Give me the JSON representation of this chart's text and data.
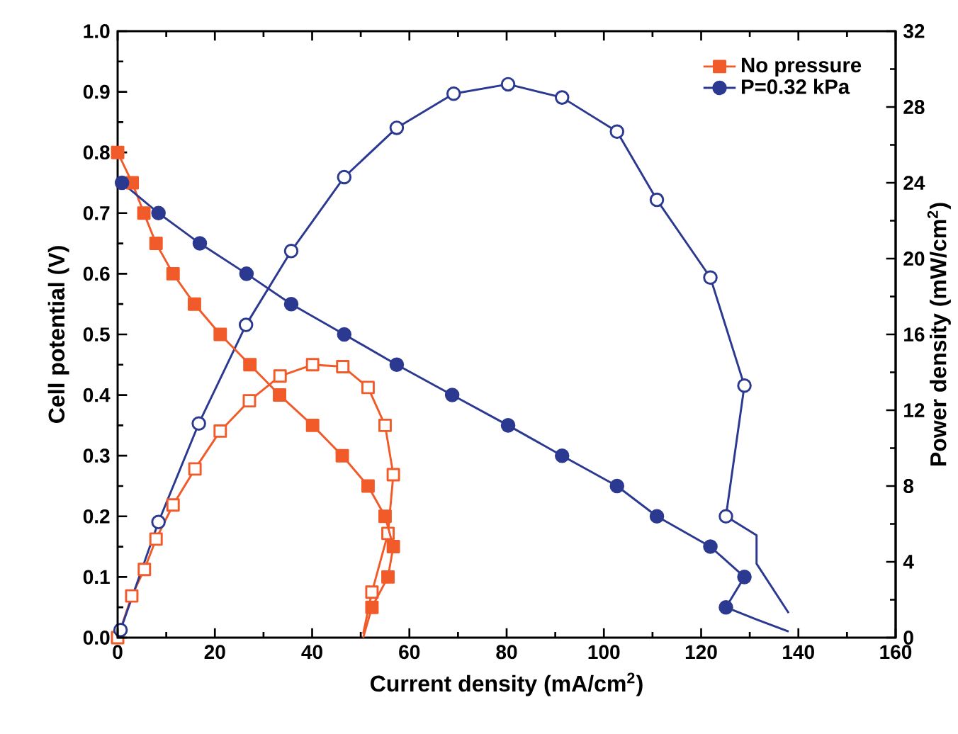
{
  "chart_data": {
    "type": "line",
    "xlabel": "Current density (mA/cm$^{2}$)",
    "ylabel": "Cell potential (V)",
    "y2label": "Power density (mW/cm$^{2}$)",
    "xlim": [
      0,
      160
    ],
    "xticks": [
      0,
      20,
      40,
      60,
      80,
      100,
      120,
      140,
      160
    ],
    "ylim": [
      0,
      1
    ],
    "yticks": [
      {
        "value": 0,
        "label": "0.0"
      },
      0.1,
      0.2,
      0.3,
      0.4,
      0.5,
      0.6,
      0.7,
      0.8,
      0.9,
      {
        "value": 1,
        "label": "1.0"
      }
    ],
    "y2lim": [
      0,
      32
    ],
    "y2ticks": [
      0,
      4,
      8,
      12,
      16,
      20,
      24,
      28,
      32
    ],
    "legend": "top right",
    "grid": false,
    "line_style": "solid",
    "series": [
      {
        "name": "No pressure",
        "color": "#f15a29",
        "marker": "square",
        "x": [
          0,
          3,
          5.4,
          7.9,
          11.4,
          15.8,
          21.1,
          27.2,
          33.3,
          40.1,
          46.2,
          51.5,
          55.0,
          56.7,
          55.6,
          52.3
        ],
        "values": [
          0.8,
          0.75,
          0.7,
          0.65,
          0.6,
          0.55,
          0.5,
          0.45,
          0.4,
          0.35,
          0.3,
          0.25,
          0.2,
          0.15,
          0.1,
          0.05
        ]
      },
      {
        "name": "P=0.32 kPa",
        "color": "#2b3990",
        "marker": "circle",
        "x": [
          0.9,
          8.4,
          16.9,
          26.5,
          35.7,
          46.6,
          57.4,
          68.8,
          80.3,
          91.4,
          102.7,
          110.9,
          121.9,
          128.9,
          125.1
        ],
        "values": [
          0.75,
          0.7,
          0.65,
          0.6,
          0.55,
          0.5,
          0.45,
          0.4,
          0.35,
          0.3,
          0.25,
          0.2,
          0.15,
          0.1,
          0.05
        ]
      },
      {
        "color": "#f15a29",
        "marker": "square",
        "axis": "y2",
        "x": [
          0,
          2.9,
          5.5,
          7.9,
          11.4,
          15.9,
          21.1,
          27.1,
          33.4,
          40.1,
          46.3,
          51.5,
          55.0,
          56.7,
          55.6,
          52.3
        ],
        "values": [
          0,
          2.2,
          3.6,
          5.2,
          7.0,
          8.9,
          10.9,
          12.5,
          13.8,
          14.4,
          14.3,
          13.2,
          11.2,
          8.6,
          5.5,
          2.4
        ]
      },
      {
        "color": "#2b3990",
        "marker": "circle",
        "axis": "y2",
        "x": [
          0.6,
          8.4,
          16.7,
          26.4,
          35.7,
          46.6,
          57.4,
          69.1,
          80.3,
          91.4,
          102.7,
          110.9,
          121.9,
          128.9,
          125.1
        ],
        "values": [
          0.4,
          6.1,
          11.3,
          16.5,
          20.4,
          24.3,
          26.9,
          28.7,
          29.2,
          28.5,
          26.7,
          23.1,
          19.0,
          13.3,
          6.4
        ]
      },
      {
        "color": "#f15a29",
        "marker": "none",
        "x": [
          52.3,
          50.5
        ],
        "values": [
          0.05,
          0.0
        ]
      },
      {
        "color": "#f15a29",
        "marker": "none",
        "axis": "y2",
        "x": [
          52.3,
          50.5
        ],
        "values": [
          2.4,
          0.2
        ]
      },
      {
        "color": "#2b3990",
        "marker": "none",
        "x": [
          125.1,
          131.4,
          138
        ],
        "values": [
          0.05,
          0.03,
          0.01
        ]
      },
      {
        "color": "#2b3990",
        "marker": "none",
        "axis": "y2",
        "x": [
          125.1,
          131.4,
          131.4,
          138
        ],
        "values": [
          6.4,
          5.4,
          3.9,
          1.3
        ]
      }
    ]
  }
}
